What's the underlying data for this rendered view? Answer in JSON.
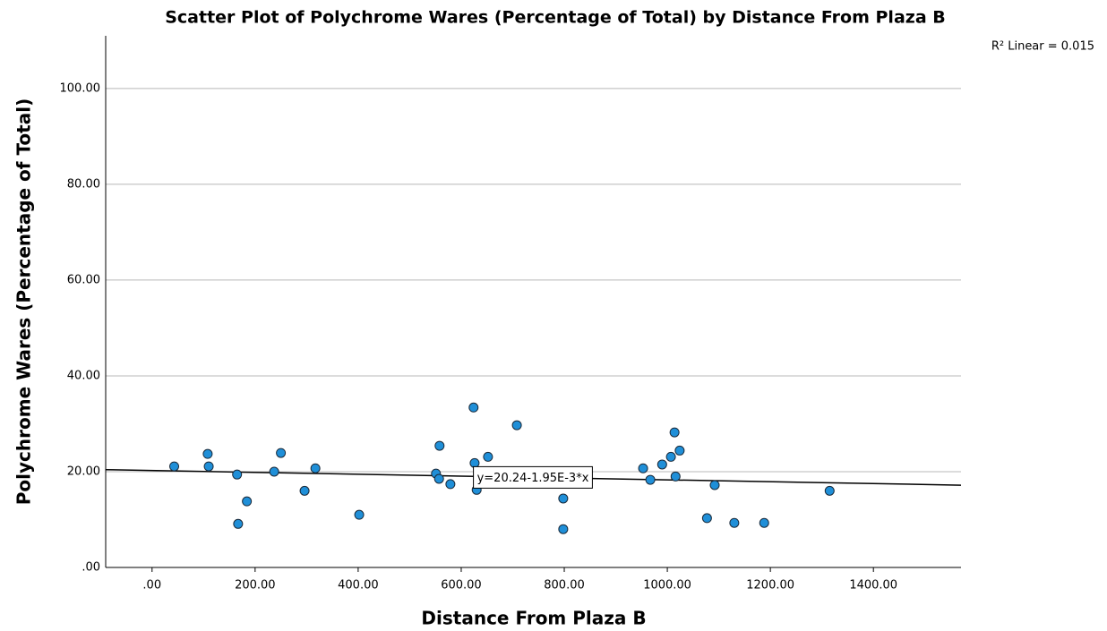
{
  "chart_data": {
    "type": "scatter",
    "title": "Scatter Plot of Polychrome Wares (Percentage of Total) by Distance From Plaza B",
    "xlabel": "Distance From Plaza B",
    "ylabel": "Polychrome Wares (Percentage of Total)",
    "annotation": "R² Linear = 0.015",
    "color": "#1f8fd8",
    "x": [
      43,
      108,
      110,
      165,
      167,
      184,
      237,
      250,
      296,
      317,
      402,
      551,
      557,
      558,
      579,
      624,
      626,
      630,
      652,
      708,
      798,
      798,
      953,
      967,
      990,
      1007,
      1014,
      1016,
      1024,
      1077,
      1092,
      1130,
      1188,
      1315
    ],
    "values": [
      21.1,
      23.7,
      21.1,
      19.4,
      9.1,
      13.8,
      20.0,
      23.9,
      16.0,
      20.7,
      11.0,
      19.6,
      18.5,
      25.4,
      17.4,
      33.4,
      21.8,
      16.2,
      23.1,
      29.7,
      14.4,
      8.0,
      20.7,
      18.3,
      21.5,
      23.1,
      28.2,
      19.0,
      24.4,
      10.3,
      17.2,
      9.3,
      9.3,
      16.0
    ],
    "fit": {
      "intercept": 20.24,
      "slope": -0.00195,
      "label": "y=20.24-1.95E-3*x"
    },
    "xlim": [
      -90,
      1570
    ],
    "ylim": [
      0,
      111
    ],
    "xticks": [
      {
        "value": 0,
        "label": ".00"
      },
      {
        "value": 200,
        "label": "200.00"
      },
      {
        "value": 400,
        "label": "400.00"
      },
      {
        "value": 600,
        "label": "600.00"
      },
      {
        "value": 800,
        "label": "800.00"
      },
      {
        "value": 1000,
        "label": "1000.00"
      },
      {
        "value": 1200,
        "label": "1200.00"
      },
      {
        "value": 1400,
        "label": "1400.00"
      }
    ],
    "yticks": [
      {
        "value": 0,
        "label": ".00"
      },
      {
        "value": 20,
        "label": "20.00"
      },
      {
        "value": 40,
        "label": "40.00"
      },
      {
        "value": 60,
        "label": "60.00"
      },
      {
        "value": 80,
        "label": "80.00"
      },
      {
        "value": 100,
        "label": "100.00"
      }
    ],
    "grid": true
  }
}
